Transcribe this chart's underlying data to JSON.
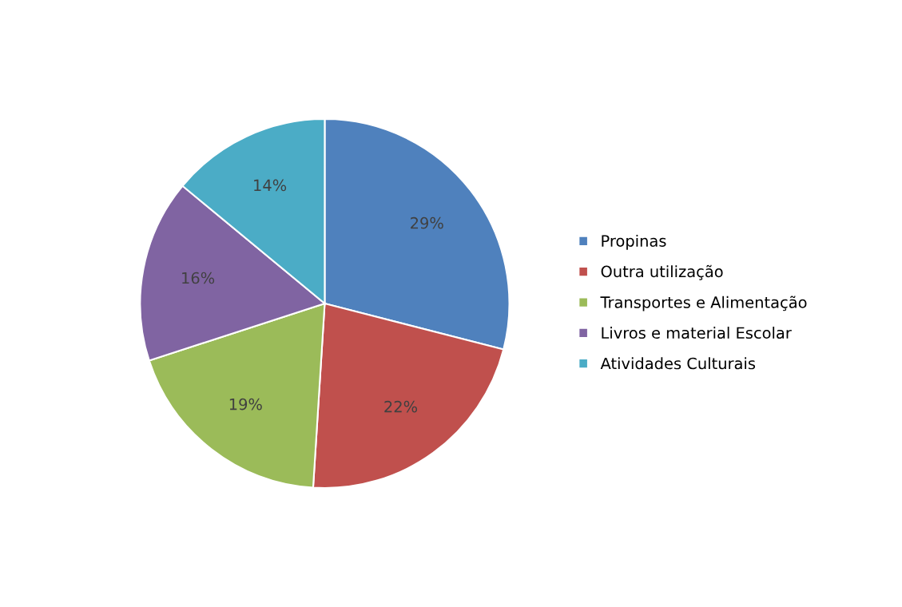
{
  "chart_data": {
    "type": "pie",
    "categories": [
      "Propinas",
      "Outra utilização",
      "Transportes e Alimentação",
      "Livros e material Escolar",
      "Atividades Culturais"
    ],
    "values": [
      29,
      22,
      19,
      16,
      14
    ],
    "colors": [
      "#4f81bd",
      "#c0504d",
      "#9bbb59",
      "#8064a2",
      "#4bacc6"
    ],
    "value_labels": [
      "29%",
      "22%",
      "19%",
      "16%",
      "14%"
    ],
    "legend": "right"
  }
}
